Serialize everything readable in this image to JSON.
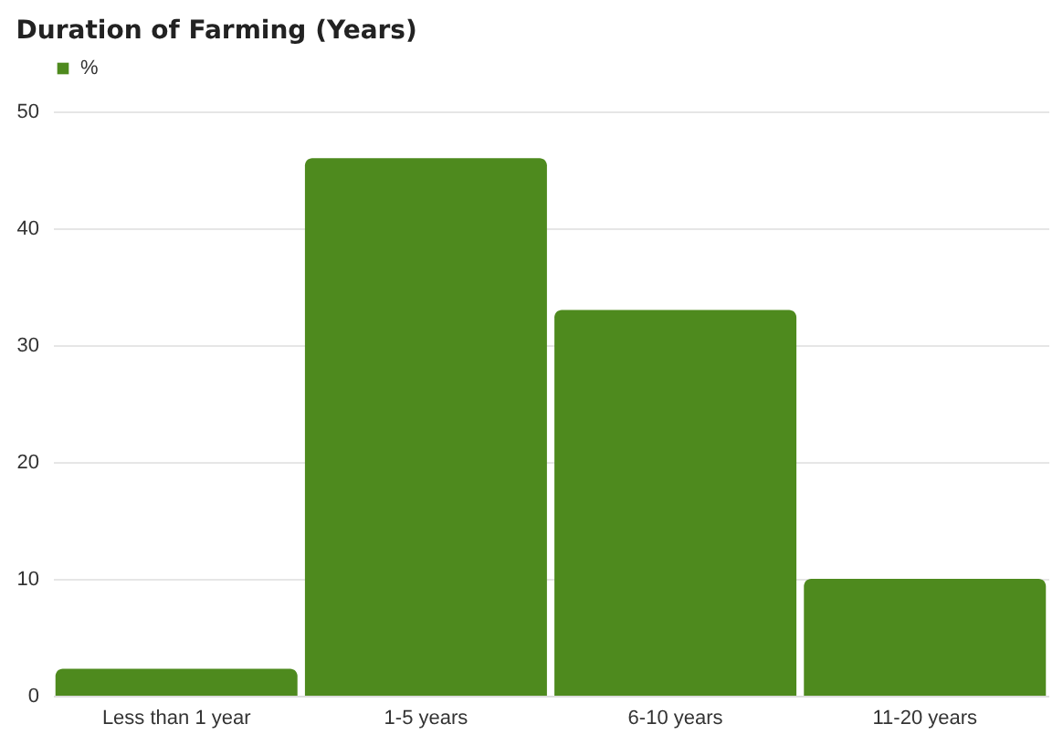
{
  "chart_data": {
    "type": "bar",
    "title": "Duration of Farming (Years)",
    "categories": [
      "Less than 1 year",
      "1-5 years",
      "6-10 years",
      "11-20 years"
    ],
    "series": [
      {
        "name": "%",
        "color": "#4e8a1e",
        "values": [
          2.3,
          46,
          33,
          10
        ]
      }
    ],
    "ylim": [
      0,
      50
    ],
    "yticks": [
      0,
      10,
      20,
      30,
      40,
      50
    ],
    "grid": "y",
    "legend": "top"
  }
}
